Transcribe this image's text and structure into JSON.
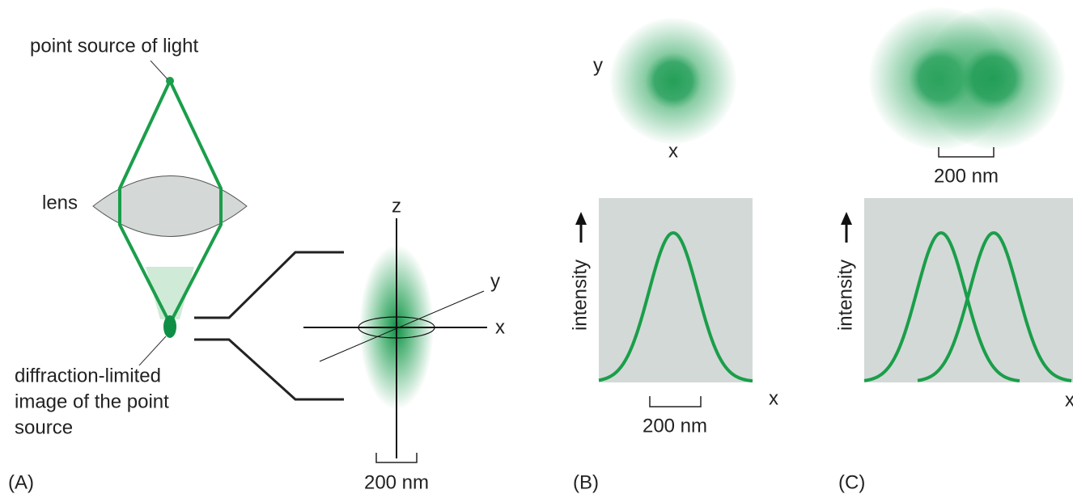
{
  "panel_a": {
    "label": "(A)",
    "point_source": "point source of light",
    "lens": "lens",
    "image_caption": [
      "diffraction-limited",
      "image of the point",
      "source"
    ],
    "axes": {
      "z": "z",
      "y": "y",
      "x": "x"
    },
    "scale": "200 nm"
  },
  "panel_b": {
    "label": "(B)",
    "image_axes": {
      "y": "y",
      "x": "x"
    },
    "plot_y": "intensity",
    "plot_x": "x",
    "scale": "200 nm"
  },
  "panel_c": {
    "label": "(C)",
    "scale_top": "200 nm",
    "plot_y": "intensity",
    "plot_x": "x"
  }
}
